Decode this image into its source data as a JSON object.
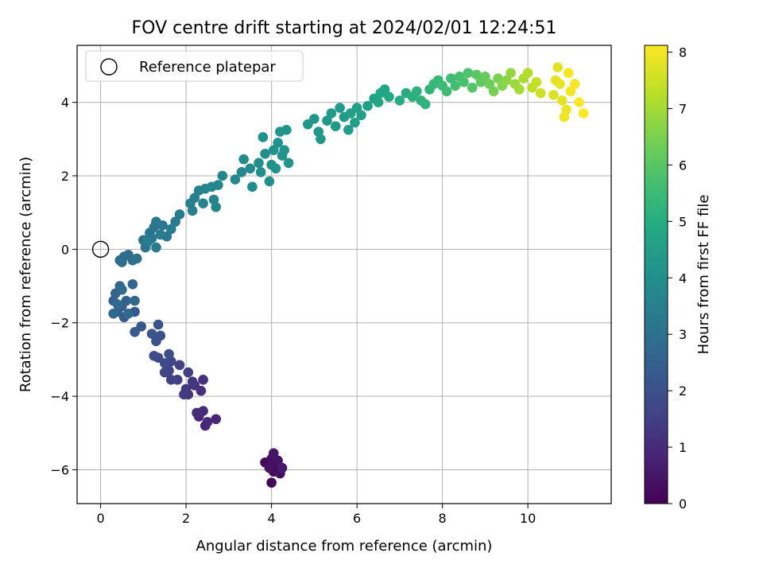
{
  "chart_data": {
    "type": "scatter",
    "title": "FOV centre drift starting at 2024/02/01 12:24:51",
    "xlabel": "Angular distance from reference (arcmin)",
    "ylabel": "Rotation from reference (arcmin)",
    "xlim": [
      -0.55,
      11.95
    ],
    "ylim": [
      -6.92,
      5.55
    ],
    "xticks": [
      0,
      2,
      4,
      6,
      8,
      10
    ],
    "yticks": [
      -6,
      -4,
      -2,
      0,
      2,
      4
    ],
    "grid": true,
    "legend": {
      "placement": "top-left",
      "entries": [
        {
          "label": "Reference platepar",
          "marker": "open-circle"
        }
      ]
    },
    "reference_point": {
      "x": 0,
      "y": 0
    },
    "colorbar": {
      "label": "Hours from first FF file",
      "min": 0,
      "max": 8.12,
      "ticks": [
        0,
        1,
        2,
        3,
        4,
        5,
        6,
        7,
        8
      ],
      "colormap": "viridis"
    },
    "points": [
      [
        4.0,
        -6.35,
        0.1
      ],
      [
        4.05,
        -6.05,
        0.15
      ],
      [
        3.85,
        -5.8,
        0.2
      ],
      [
        4.1,
        -5.9,
        0.25
      ],
      [
        4.2,
        -6.1,
        0.3
      ],
      [
        4.0,
        -5.7,
        0.35
      ],
      [
        3.95,
        -5.95,
        0.4
      ],
      [
        4.15,
        -5.75,
        0.45
      ],
      [
        4.05,
        -5.55,
        0.5
      ],
      [
        4.25,
        -5.95,
        0.55
      ],
      [
        2.45,
        -4.8,
        0.8
      ],
      [
        2.7,
        -4.62,
        0.85
      ],
      [
        2.3,
        -4.55,
        0.9
      ],
      [
        2.5,
        -4.7,
        0.95
      ],
      [
        2.4,
        -4.4,
        1.0
      ],
      [
        2.25,
        -4.45,
        1.05
      ],
      [
        2.35,
        -3.85,
        1.1
      ],
      [
        2.4,
        -3.55,
        1.15
      ],
      [
        2.2,
        -3.7,
        1.2
      ],
      [
        2.05,
        -3.95,
        1.25
      ],
      [
        2.15,
        -3.6,
        1.3
      ],
      [
        2.0,
        -3.8,
        1.35
      ],
      [
        1.95,
        -3.95,
        1.4
      ],
      [
        2.05,
        -3.35,
        1.45
      ],
      [
        1.8,
        -3.55,
        1.5
      ],
      [
        1.85,
        -3.15,
        1.55
      ],
      [
        1.65,
        -3.55,
        1.6
      ],
      [
        1.6,
        -3.3,
        1.65
      ],
      [
        1.5,
        -3.35,
        1.7
      ],
      [
        1.65,
        -3.05,
        1.75
      ],
      [
        1.35,
        -2.95,
        1.8
      ],
      [
        1.5,
        -3.1,
        1.85
      ],
      [
        1.25,
        -2.9,
        1.9
      ],
      [
        1.6,
        -2.85,
        1.95
      ],
      [
        1.3,
        -2.5,
        2.0
      ],
      [
        1.4,
        -2.35,
        2.05
      ],
      [
        1.35,
        -2.05,
        2.1
      ],
      [
        1.2,
        -2.3,
        2.15
      ],
      [
        0.95,
        -2.1,
        2.2
      ],
      [
        0.8,
        -2.25,
        2.25
      ],
      [
        0.8,
        -1.7,
        2.3
      ],
      [
        0.55,
        -1.85,
        2.35
      ],
      [
        0.4,
        -1.7,
        2.4
      ],
      [
        0.5,
        -1.55,
        2.45
      ],
      [
        0.3,
        -1.4,
        2.5
      ],
      [
        0.6,
        -1.4,
        2.55
      ],
      [
        0.35,
        -1.2,
        2.6
      ],
      [
        0.45,
        -1.0,
        2.65
      ],
      [
        0.75,
        -0.95,
        2.7
      ],
      [
        0.8,
        -1.4,
        2.75
      ],
      [
        0.3,
        -1.75,
        2.75
      ],
      [
        0.5,
        -1.1,
        2.78
      ],
      [
        0.65,
        -1.75,
        2.8
      ],
      [
        0.4,
        -1.5,
        2.8
      ],
      [
        0.45,
        -0.3,
        2.85
      ],
      [
        0.55,
        -0.2,
        2.9
      ],
      [
        0.65,
        -0.15,
        2.9
      ],
      [
        0.75,
        -0.3,
        2.95
      ],
      [
        0.5,
        -0.35,
        2.95
      ],
      [
        0.85,
        -0.25,
        3.0
      ],
      [
        1.05,
        0.05,
        3.05
      ],
      [
        1.0,
        0.25,
        3.1
      ],
      [
        1.15,
        0.45,
        3.15
      ],
      [
        1.25,
        0.6,
        3.15
      ],
      [
        1.3,
        0.75,
        3.2
      ],
      [
        1.45,
        0.65,
        3.2
      ],
      [
        1.2,
        0.3,
        3.25
      ],
      [
        1.55,
        0.35,
        3.25
      ],
      [
        1.3,
        0.05,
        3.3
      ],
      [
        1.65,
        0.55,
        3.3
      ],
      [
        1.75,
        0.75,
        3.35
      ],
      [
        1.85,
        0.95,
        3.35
      ],
      [
        1.4,
        0.4,
        3.35
      ],
      [
        1.1,
        0.2,
        3.4
      ],
      [
        2.1,
        1.25,
        3.45
      ],
      [
        2.2,
        1.4,
        3.5
      ],
      [
        2.15,
        1.05,
        3.55
      ],
      [
        2.3,
        1.6,
        3.6
      ],
      [
        2.4,
        1.25,
        3.6
      ],
      [
        2.45,
        1.65,
        3.65
      ],
      [
        2.65,
        1.35,
        3.65
      ],
      [
        2.7,
        1.15,
        3.7
      ],
      [
        2.6,
        1.7,
        3.7
      ],
      [
        2.85,
        2.0,
        3.75
      ],
      [
        2.75,
        1.75,
        3.75
      ],
      [
        3.15,
        1.9,
        3.8
      ],
      [
        3.3,
        2.1,
        3.8
      ],
      [
        3.35,
        2.45,
        3.85
      ],
      [
        3.5,
        2.2,
        3.85
      ],
      [
        3.55,
        1.7,
        3.9
      ],
      [
        3.7,
        2.35,
        3.9
      ],
      [
        3.85,
        2.6,
        3.95
      ],
      [
        3.75,
        2.1,
        3.95
      ],
      [
        3.95,
        1.85,
        4.0
      ],
      [
        4.0,
        2.3,
        4.0
      ],
      [
        4.05,
        2.7,
        4.05
      ],
      [
        3.8,
        3.05,
        4.05
      ],
      [
        4.15,
        2.9,
        4.1
      ],
      [
        4.25,
        2.55,
        4.1
      ],
      [
        4.3,
        2.7,
        4.15
      ],
      [
        4.4,
        2.35,
        4.15
      ],
      [
        4.1,
        2.2,
        4.15
      ],
      [
        4.2,
        3.2,
        4.2
      ],
      [
        4.35,
        3.25,
        4.2
      ],
      [
        4.85,
        3.4,
        4.25
      ],
      [
        5.0,
        3.55,
        4.3
      ],
      [
        5.1,
        3.2,
        4.3
      ],
      [
        5.15,
        3.0,
        4.35
      ],
      [
        5.3,
        3.5,
        4.35
      ],
      [
        5.4,
        3.7,
        4.4
      ],
      [
        5.5,
        3.35,
        4.4
      ],
      [
        5.6,
        3.85,
        4.45
      ],
      [
        5.7,
        3.6,
        4.45
      ],
      [
        5.8,
        3.25,
        4.5
      ],
      [
        5.85,
        3.7,
        4.5
      ],
      [
        5.95,
        3.45,
        4.55
      ],
      [
        6.0,
        3.85,
        4.55
      ],
      [
        6.1,
        3.65,
        4.6
      ],
      [
        6.25,
        3.9,
        4.6
      ],
      [
        6.4,
        4.1,
        4.7
      ],
      [
        6.5,
        4.0,
        4.75
      ],
      [
        6.55,
        4.25,
        4.8
      ],
      [
        6.65,
        4.35,
        4.85
      ],
      [
        6.75,
        4.15,
        4.9
      ],
      [
        7.0,
        4.05,
        5.0
      ],
      [
        7.15,
        4.25,
        5.05
      ],
      [
        7.3,
        4.15,
        5.1
      ],
      [
        7.4,
        4.3,
        5.15
      ],
      [
        7.5,
        4.05,
        5.2
      ],
      [
        7.6,
        3.95,
        5.25
      ],
      [
        7.7,
        4.35,
        5.3
      ],
      [
        7.8,
        4.5,
        5.35
      ],
      [
        7.9,
        4.6,
        5.4
      ],
      [
        8.0,
        4.45,
        5.5
      ],
      [
        8.1,
        4.3,
        5.55
      ],
      [
        8.2,
        4.65,
        5.6
      ],
      [
        8.3,
        4.45,
        5.65
      ],
      [
        8.4,
        4.7,
        5.7
      ],
      [
        8.5,
        4.55,
        5.75
      ],
      [
        8.6,
        4.8,
        5.8
      ],
      [
        8.7,
        4.4,
        5.9
      ],
      [
        8.8,
        4.75,
        6.0
      ],
      [
        8.9,
        4.55,
        6.1
      ],
      [
        9.0,
        4.7,
        6.2
      ],
      [
        9.1,
        4.5,
        6.3
      ],
      [
        9.2,
        4.3,
        6.4
      ],
      [
        9.3,
        4.65,
        6.5
      ],
      [
        9.4,
        4.45,
        6.6
      ],
      [
        9.5,
        4.6,
        6.7
      ],
      [
        9.6,
        4.8,
        6.8
      ],
      [
        9.7,
        4.5,
        6.9
      ],
      [
        9.8,
        4.35,
        7.0
      ],
      [
        9.9,
        4.65,
        7.1
      ],
      [
        10.0,
        4.8,
        7.2
      ],
      [
        10.1,
        4.4,
        7.3
      ],
      [
        10.2,
        4.55,
        7.4
      ],
      [
        10.3,
        4.25,
        7.5
      ],
      [
        10.6,
        4.2,
        7.7
      ],
      [
        10.7,
        4.95,
        7.75
      ],
      [
        10.8,
        4.05,
        7.8
      ],
      [
        10.9,
        3.8,
        7.9
      ],
      [
        10.85,
        3.6,
        7.95
      ],
      [
        11.0,
        4.3,
        8.0
      ],
      [
        11.1,
        4.5,
        8.0
      ],
      [
        10.95,
        4.8,
        8.05
      ],
      [
        11.2,
        4.0,
        8.1
      ],
      [
        11.3,
        3.7,
        8.1
      ],
      [
        10.75,
        4.5,
        7.85
      ],
      [
        10.65,
        4.6,
        7.8
      ]
    ]
  }
}
